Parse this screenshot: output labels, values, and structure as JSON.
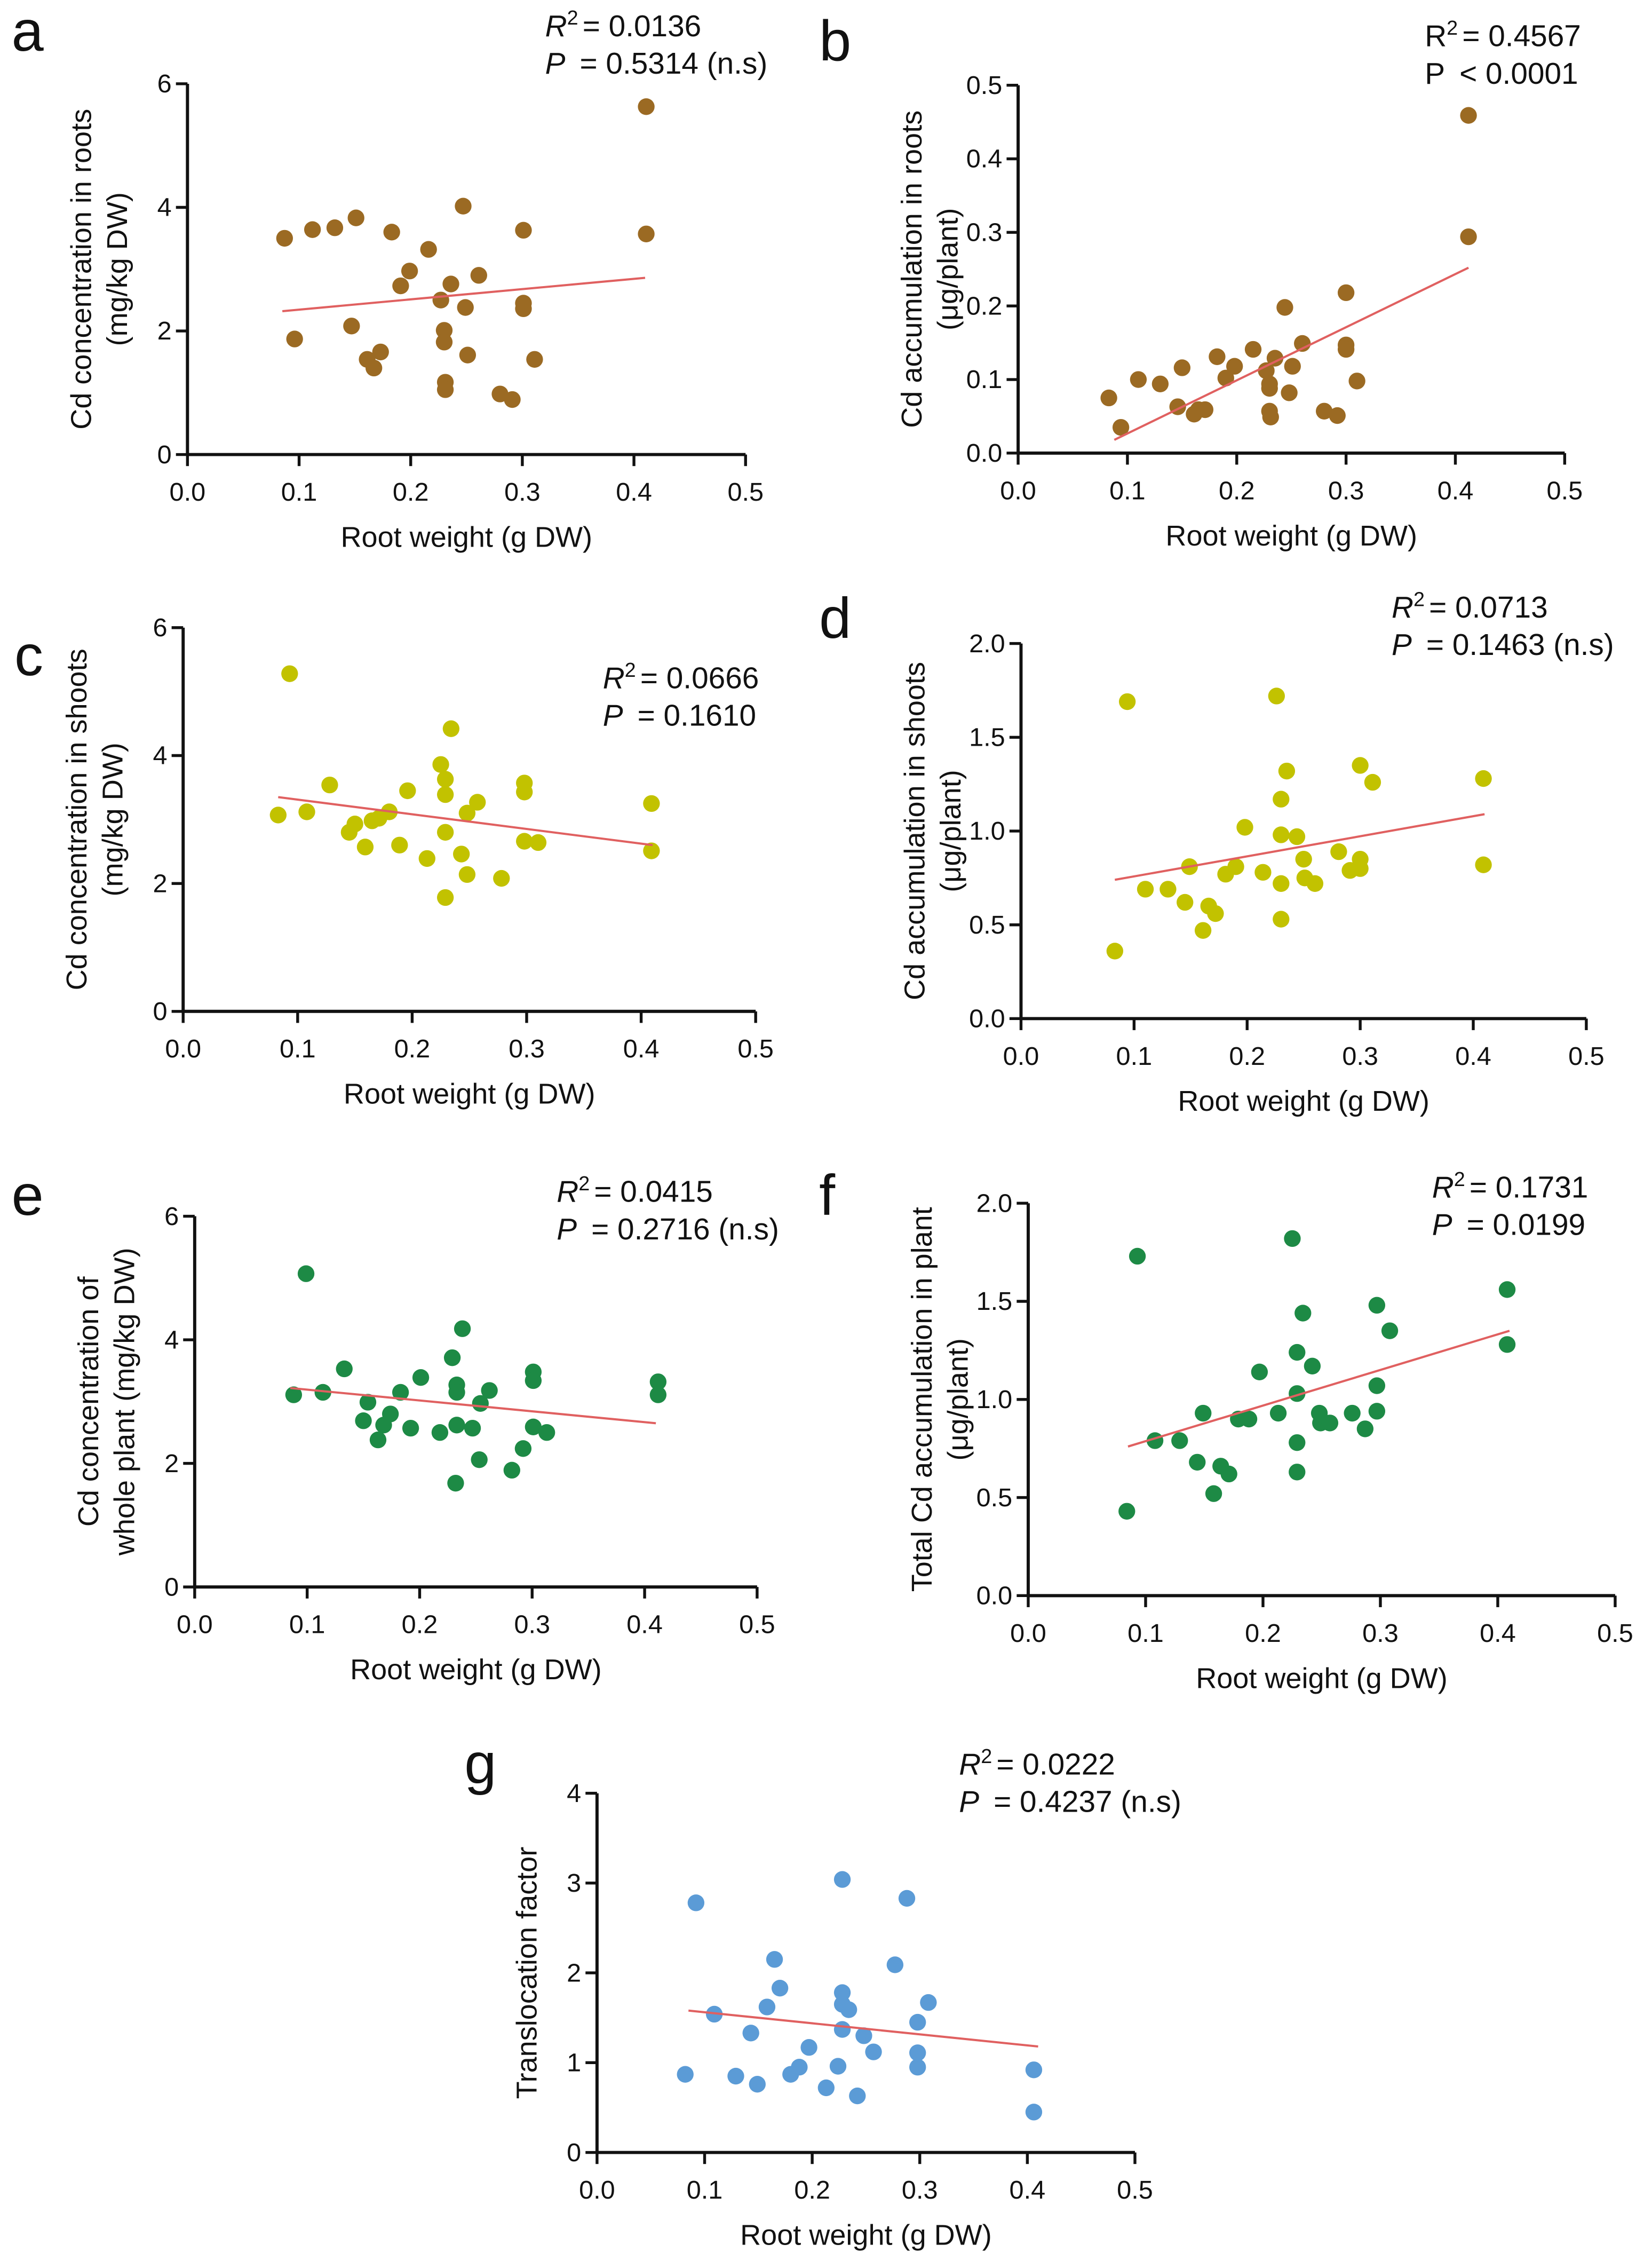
{
  "colors": {
    "brown": "#9b6a23",
    "yellow": "#c2c200",
    "green": "#1d8a45",
    "blue": "#5b9bd6",
    "fit": "#e06060",
    "axis": "#111111"
  },
  "chart_data": [
    {
      "type": "scatter",
      "letter": "a",
      "color_key": "brown",
      "stats": {
        "r_label": "R",
        "r_sup": "2",
        "r_text": "= 0.0136",
        "p_label": "P",
        "p_text": "= 0.5314 (n.s)",
        "italic": true
      },
      "ylabel": [
        "Cd concentration in roots",
        "(mg/kg DW)"
      ],
      "xlabel": "Root weight (g DW)",
      "xlim": [
        0,
        0.5
      ],
      "ylim": [
        0,
        6
      ],
      "xticks": [
        "0.0",
        "0.1",
        "0.2",
        "0.3",
        "0.4",
        "0.5"
      ],
      "yticks": [
        "0",
        "2",
        "4",
        "6"
      ],
      "fit": [
        [
          0.085,
          2.32
        ],
        [
          0.41,
          2.86
        ]
      ],
      "points": [
        [
          0.087,
          3.5
        ],
        [
          0.112,
          3.64
        ],
        [
          0.132,
          3.67
        ],
        [
          0.151,
          3.83
        ],
        [
          0.183,
          3.6
        ],
        [
          0.096,
          1.87
        ],
        [
          0.147,
          2.08
        ],
        [
          0.161,
          1.54
        ],
        [
          0.167,
          1.4
        ],
        [
          0.173,
          1.66
        ],
        [
          0.191,
          2.73
        ],
        [
          0.199,
          2.97
        ],
        [
          0.216,
          3.32
        ],
        [
          0.227,
          2.5
        ],
        [
          0.23,
          2.01
        ],
        [
          0.23,
          1.82
        ],
        [
          0.231,
          1.17
        ],
        [
          0.231,
          1.05
        ],
        [
          0.236,
          2.76
        ],
        [
          0.247,
          4.02
        ],
        [
          0.249,
          2.38
        ],
        [
          0.251,
          1.61
        ],
        [
          0.261,
          2.9
        ],
        [
          0.28,
          0.98
        ],
        [
          0.291,
          0.89
        ],
        [
          0.301,
          3.63
        ],
        [
          0.301,
          2.45
        ],
        [
          0.301,
          2.36
        ],
        [
          0.311,
          1.54
        ],
        [
          0.411,
          5.63
        ],
        [
          0.411,
          3.57
        ]
      ]
    },
    {
      "type": "scatter",
      "letter": "b",
      "color_key": "brown",
      "stats": {
        "r_label": "R",
        "r_sup": "2",
        "r_text": "= 0.4567",
        "p_label": "P",
        "p_text": "< 0.0001",
        "italic": false
      },
      "ylabel": [
        "Cd accumulation in roots",
        "(μg/plant)"
      ],
      "xlabel": "Root weight (g DW)",
      "xlim": [
        0,
        0.5
      ],
      "ylim": [
        0,
        0.5
      ],
      "xticks": [
        "0.0",
        "0.1",
        "0.2",
        "0.3",
        "0.4",
        "0.5"
      ],
      "yticks": [
        "0.0",
        "0.1",
        "0.2",
        "0.3",
        "0.4",
        "0.5"
      ],
      "fit": [
        [
          0.088,
          0.018
        ],
        [
          0.412,
          0.252
        ]
      ],
      "points": [
        [
          0.083,
          0.075
        ],
        [
          0.094,
          0.035
        ],
        [
          0.11,
          0.1
        ],
        [
          0.13,
          0.094
        ],
        [
          0.146,
          0.063
        ],
        [
          0.15,
          0.116
        ],
        [
          0.161,
          0.053
        ],
        [
          0.165,
          0.059
        ],
        [
          0.171,
          0.059
        ],
        [
          0.182,
          0.131
        ],
        [
          0.19,
          0.102
        ],
        [
          0.198,
          0.118
        ],
        [
          0.215,
          0.141
        ],
        [
          0.227,
          0.112
        ],
        [
          0.23,
          0.088
        ],
        [
          0.23,
          0.057
        ],
        [
          0.231,
          0.049
        ],
        [
          0.235,
          0.129
        ],
        [
          0.244,
          0.198
        ],
        [
          0.248,
          0.082
        ],
        [
          0.251,
          0.118
        ],
        [
          0.26,
          0.149
        ],
        [
          0.28,
          0.057
        ],
        [
          0.292,
          0.051
        ],
        [
          0.3,
          0.218
        ],
        [
          0.3,
          0.147
        ],
        [
          0.3,
          0.141
        ],
        [
          0.31,
          0.098
        ],
        [
          0.412,
          0.459
        ],
        [
          0.412,
          0.294
        ],
        [
          0.23,
          0.094
        ]
      ]
    },
    {
      "type": "scatter",
      "letter": "c",
      "color_key": "yellow",
      "stats": {
        "r_label": "R",
        "r_sup": "2",
        "r_text": "= 0.0666",
        "p_label": "P",
        "p_text": "= 0.1610",
        "italic": true
      },
      "ylabel": [
        "Cd concentration in shoots",
        "(mg/kg DW)"
      ],
      "xlabel": "Root weight (g DW)",
      "xlim": [
        0,
        0.5
      ],
      "ylim": [
        0,
        6
      ],
      "xticks": [
        "0.0",
        "0.1",
        "0.2",
        "0.3",
        "0.4",
        "0.5"
      ],
      "yticks": [
        "0",
        "2",
        "4",
        "6"
      ],
      "fit": [
        [
          0.083,
          3.35
        ],
        [
          0.41,
          2.6
        ]
      ],
      "points": [
        [
          0.083,
          3.07
        ],
        [
          0.093,
          5.28
        ],
        [
          0.108,
          3.12
        ],
        [
          0.128,
          3.54
        ],
        [
          0.145,
          2.8
        ],
        [
          0.15,
          2.93
        ],
        [
          0.159,
          2.57
        ],
        [
          0.165,
          2.98
        ],
        [
          0.171,
          3.02
        ],
        [
          0.18,
          3.12
        ],
        [
          0.189,
          2.6
        ],
        [
          0.196,
          3.45
        ],
        [
          0.213,
          2.39
        ],
        [
          0.225,
          3.86
        ],
        [
          0.229,
          3.63
        ],
        [
          0.229,
          2.8
        ],
        [
          0.229,
          3.39
        ],
        [
          0.229,
          1.78
        ],
        [
          0.234,
          4.42
        ],
        [
          0.243,
          2.46
        ],
        [
          0.248,
          2.14
        ],
        [
          0.248,
          3.1
        ],
        [
          0.257,
          3.27
        ],
        [
          0.278,
          2.08
        ],
        [
          0.298,
          3.57
        ],
        [
          0.298,
          3.43
        ],
        [
          0.298,
          2.66
        ],
        [
          0.31,
          2.64
        ],
        [
          0.409,
          3.25
        ],
        [
          0.409,
          2.51
        ]
      ]
    },
    {
      "type": "scatter",
      "letter": "d",
      "color_key": "yellow",
      "stats": {
        "r_label": "R",
        "r_sup": "2",
        "r_text": "= 0.0713",
        "p_label": "P",
        "p_text": "= 0.1463 (n.s)",
        "italic": true
      },
      "ylabel": [
        "Cd accumulation in shoots",
        "(μg/plant)"
      ],
      "xlabel": "Root weight (g DW)",
      "xlim": [
        0,
        0.5
      ],
      "ylim": [
        0,
        2
      ],
      "xticks": [
        "0.0",
        "0.1",
        "0.2",
        "0.3",
        "0.4",
        "0.5"
      ],
      "yticks": [
        "0.0",
        "0.5",
        "1.0",
        "1.5",
        "2.0"
      ],
      "fit": [
        [
          0.083,
          0.74
        ],
        [
          0.41,
          1.09
        ]
      ],
      "points": [
        [
          0.083,
          0.36
        ],
        [
          0.094,
          1.69
        ],
        [
          0.11,
          0.69
        ],
        [
          0.13,
          0.69
        ],
        [
          0.145,
          0.62
        ],
        [
          0.149,
          0.81
        ],
        [
          0.161,
          0.47
        ],
        [
          0.166,
          0.6
        ],
        [
          0.172,
          0.56
        ],
        [
          0.181,
          0.77
        ],
        [
          0.19,
          0.81
        ],
        [
          0.198,
          1.02
        ],
        [
          0.214,
          0.78
        ],
        [
          0.226,
          1.72
        ],
        [
          0.23,
          1.17
        ],
        [
          0.23,
          0.98
        ],
        [
          0.23,
          0.72
        ],
        [
          0.23,
          0.53
        ],
        [
          0.235,
          1.32
        ],
        [
          0.244,
          0.97
        ],
        [
          0.25,
          0.85
        ],
        [
          0.251,
          0.75
        ],
        [
          0.26,
          0.72
        ],
        [
          0.281,
          0.89
        ],
        [
          0.291,
          0.79
        ],
        [
          0.3,
          1.35
        ],
        [
          0.3,
          0.85
        ],
        [
          0.3,
          0.8
        ],
        [
          0.311,
          1.26
        ],
        [
          0.409,
          1.28
        ],
        [
          0.409,
          0.82
        ]
      ]
    },
    {
      "type": "scatter",
      "letter": "e",
      "color_key": "green",
      "stats": {
        "r_label": "R",
        "r_sup": "2",
        "r_text": "= 0.0415",
        "p_label": "P",
        "p_text": "= 0.2716 (n.s)",
        "italic": true
      },
      "ylabel": [
        "Cd concentration of",
        "whole plant (mg/kg DW)"
      ],
      "xlabel": "Root weight (g DW)",
      "xlim": [
        0,
        0.5
      ],
      "ylim": [
        0,
        6
      ],
      "xticks": [
        "0.0",
        "0.1",
        "0.2",
        "0.3",
        "0.4",
        "0.5"
      ],
      "yticks": [
        "0",
        "2",
        "4",
        "6"
      ],
      "fit": [
        [
          0.085,
          3.22
        ],
        [
          0.41,
          2.65
        ]
      ],
      "points": [
        [
          0.088,
          3.11
        ],
        [
          0.099,
          5.07
        ],
        [
          0.114,
          3.15
        ],
        [
          0.133,
          3.53
        ],
        [
          0.15,
          2.69
        ],
        [
          0.154,
          2.99
        ],
        [
          0.163,
          2.38
        ],
        [
          0.168,
          2.62
        ],
        [
          0.174,
          2.8
        ],
        [
          0.183,
          3.15
        ],
        [
          0.192,
          2.57
        ],
        [
          0.201,
          3.39
        ],
        [
          0.218,
          2.5
        ],
        [
          0.229,
          3.71
        ],
        [
          0.233,
          3.27
        ],
        [
          0.233,
          3.15
        ],
        [
          0.233,
          2.62
        ],
        [
          0.232,
          1.68
        ],
        [
          0.238,
          4.18
        ],
        [
          0.247,
          2.57
        ],
        [
          0.253,
          2.06
        ],
        [
          0.254,
          2.97
        ],
        [
          0.262,
          3.18
        ],
        [
          0.282,
          1.89
        ],
        [
          0.292,
          2.24
        ],
        [
          0.301,
          3.48
        ],
        [
          0.301,
          3.34
        ],
        [
          0.301,
          2.59
        ],
        [
          0.313,
          2.5
        ],
        [
          0.412,
          3.32
        ],
        [
          0.412,
          3.11
        ]
      ]
    },
    {
      "type": "scatter",
      "letter": "f",
      "color_key": "green",
      "stats": {
        "r_label": "R",
        "r_sup": "2",
        "r_text": "= 0.1731",
        "p_label": "P",
        "p_text": "= 0.0199",
        "italic": true
      },
      "ylabel": [
        "Total Cd accumulation in plant",
        "(μg/plant)"
      ],
      "xlabel": "Root weight (g DW)",
      "xlim": [
        0,
        0.5
      ],
      "ylim": [
        0,
        2
      ],
      "xticks": [
        "0.0",
        "0.1",
        "0.2",
        "0.3",
        "0.4",
        "0.5"
      ],
      "yticks": [
        "0.0",
        "0.5",
        "1.0",
        "1.5",
        "2.0"
      ],
      "fit": [
        [
          0.085,
          0.76
        ],
        [
          0.41,
          1.35
        ]
      ],
      "points": [
        [
          0.084,
          0.43
        ],
        [
          0.093,
          1.73
        ],
        [
          0.108,
          0.79
        ],
        [
          0.129,
          0.79
        ],
        [
          0.144,
          0.68
        ],
        [
          0.149,
          0.93
        ],
        [
          0.158,
          0.52
        ],
        [
          0.164,
          0.66
        ],
        [
          0.171,
          0.62
        ],
        [
          0.179,
          0.9
        ],
        [
          0.188,
          0.9
        ],
        [
          0.197,
          1.14
        ],
        [
          0.213,
          0.93
        ],
        [
          0.225,
          1.82
        ],
        [
          0.229,
          1.24
        ],
        [
          0.229,
          1.03
        ],
        [
          0.229,
          0.78
        ],
        [
          0.229,
          0.63
        ],
        [
          0.234,
          1.44
        ],
        [
          0.242,
          1.17
        ],
        [
          0.248,
          0.93
        ],
        [
          0.249,
          0.88
        ],
        [
          0.257,
          0.88
        ],
        [
          0.276,
          0.93
        ],
        [
          0.287,
          0.85
        ],
        [
          0.297,
          1.48
        ],
        [
          0.297,
          1.07
        ],
        [
          0.297,
          0.94
        ],
        [
          0.308,
          1.35
        ],
        [
          0.408,
          1.56
        ],
        [
          0.408,
          1.28
        ]
      ]
    },
    {
      "type": "scatter",
      "letter": "g",
      "color_key": "blue",
      "stats": {
        "r_label": "R",
        "r_sup": "2",
        "r_text": "= 0.0222",
        "p_label": "P",
        "p_text": "= 0.4237 (n.s)",
        "italic": true
      },
      "ylabel": [
        "Translocation factor"
      ],
      "xlabel": "Root weight (g DW)",
      "xlim": [
        0,
        0.5
      ],
      "ylim": [
        0,
        4
      ],
      "xticks": [
        "0.0",
        "0.1",
        "0.2",
        "0.3",
        "0.4",
        "0.5"
      ],
      "yticks": [
        "0",
        "1",
        "2",
        "3",
        "4"
      ],
      "fit": [
        [
          0.085,
          1.58
        ],
        [
          0.41,
          1.18
        ]
      ],
      "points": [
        [
          0.082,
          0.87
        ],
        [
          0.092,
          2.78
        ],
        [
          0.109,
          1.54
        ],
        [
          0.129,
          0.85
        ],
        [
          0.143,
          1.33
        ],
        [
          0.149,
          0.76
        ],
        [
          0.158,
          1.62
        ],
        [
          0.165,
          2.15
        ],
        [
          0.17,
          1.83
        ],
        [
          0.18,
          0.87
        ],
        [
          0.188,
          0.95
        ],
        [
          0.197,
          1.17
        ],
        [
          0.213,
          0.72
        ],
        [
          0.224,
          0.96
        ],
        [
          0.228,
          3.04
        ],
        [
          0.228,
          1.78
        ],
        [
          0.228,
          1.65
        ],
        [
          0.228,
          1.37
        ],
        [
          0.234,
          1.59
        ],
        [
          0.242,
          0.63
        ],
        [
          0.248,
          1.3
        ],
        [
          0.257,
          1.12
        ],
        [
          0.277,
          2.09
        ],
        [
          0.288,
          2.83
        ],
        [
          0.298,
          1.11
        ],
        [
          0.298,
          0.95
        ],
        [
          0.298,
          1.45
        ],
        [
          0.308,
          1.67
        ],
        [
          0.406,
          0.92
        ],
        [
          0.406,
          0.45
        ]
      ]
    }
  ]
}
